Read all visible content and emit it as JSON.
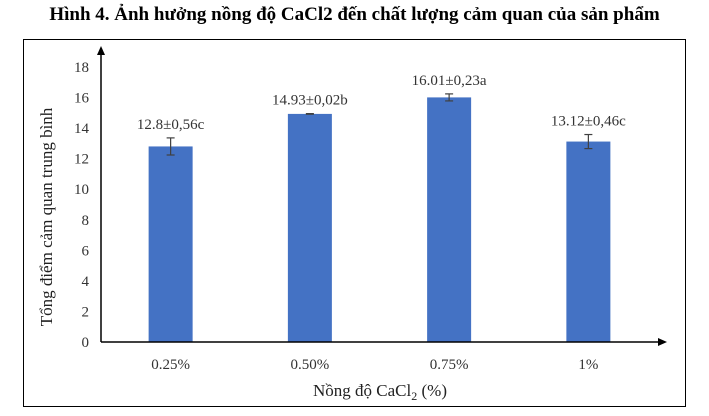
{
  "figure_title": "Hình 4. Ảnh hưởng nồng độ CaCl2 đến chất lượng cảm quan của sản phẩm",
  "colors": {
    "bar": "#4472C4",
    "axis": "#000000",
    "errorbar": "#404040"
  },
  "chart_data": {
    "type": "bar",
    "categories": [
      "0.25%",
      "0.50%",
      "0.75%",
      "1%"
    ],
    "values": [
      12.8,
      14.93,
      16.01,
      13.12
    ],
    "errors": [
      0.56,
      0.02,
      0.23,
      0.46
    ],
    "data_labels": [
      "12.8±0,56c",
      "14.93±0,02b",
      "16.01±0,23a",
      "13.12±0,46c"
    ],
    "xlabel": "Nồng độ CaCl",
    "xlabel_subscript": "2",
    "xlabel_suffix": " (%)",
    "ylabel": "Tổng điểm cảm quan trung bình",
    "ylim": [
      0,
      18
    ],
    "yticks": [
      0,
      2,
      4,
      6,
      8,
      10,
      12,
      14,
      16,
      18
    ],
    "grid": false,
    "legend": "none"
  }
}
